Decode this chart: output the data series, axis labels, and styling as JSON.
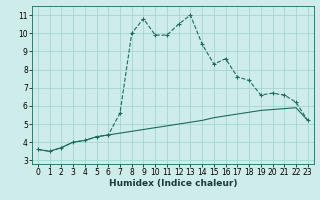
{
  "xlabel": "Humidex (Indice chaleur)",
  "background_color": "#ceecea",
  "grid_color": "#a8d5d0",
  "line_color": "#1a6b5e",
  "curve1_x": [
    0,
    1,
    2,
    3,
    4,
    5,
    6,
    7,
    8,
    9,
    10,
    11,
    12,
    13,
    14,
    15,
    16,
    17,
    18,
    19,
    20,
    21,
    22,
    23
  ],
  "curve1_y": [
    3.6,
    3.5,
    3.7,
    4.0,
    4.1,
    4.3,
    4.4,
    5.6,
    10.0,
    10.8,
    9.9,
    9.9,
    10.5,
    11.0,
    9.4,
    8.3,
    8.6,
    7.6,
    7.4,
    6.6,
    6.7,
    6.6,
    6.2,
    5.2
  ],
  "curve2_x": [
    0,
    1,
    2,
    3,
    4,
    5,
    6,
    7,
    8,
    9,
    10,
    11,
    12,
    13,
    14,
    15,
    16,
    17,
    18,
    19,
    20,
    21,
    22,
    23
  ],
  "curve2_y": [
    3.6,
    3.5,
    3.7,
    4.0,
    4.1,
    4.3,
    4.4,
    4.5,
    4.6,
    4.7,
    4.8,
    4.9,
    5.0,
    5.1,
    5.2,
    5.35,
    5.45,
    5.55,
    5.65,
    5.75,
    5.8,
    5.85,
    5.9,
    5.2
  ],
  "ylim": [
    2.8,
    11.5
  ],
  "xlim": [
    -0.5,
    23.5
  ],
  "yticks": [
    3,
    4,
    5,
    6,
    7,
    8,
    9,
    10,
    11
  ],
  "xticks": [
    0,
    1,
    2,
    3,
    4,
    5,
    6,
    7,
    8,
    9,
    10,
    11,
    12,
    13,
    14,
    15,
    16,
    17,
    18,
    19,
    20,
    21,
    22,
    23
  ],
  "label_fontsize": 6.5,
  "tick_fontsize": 5.5
}
